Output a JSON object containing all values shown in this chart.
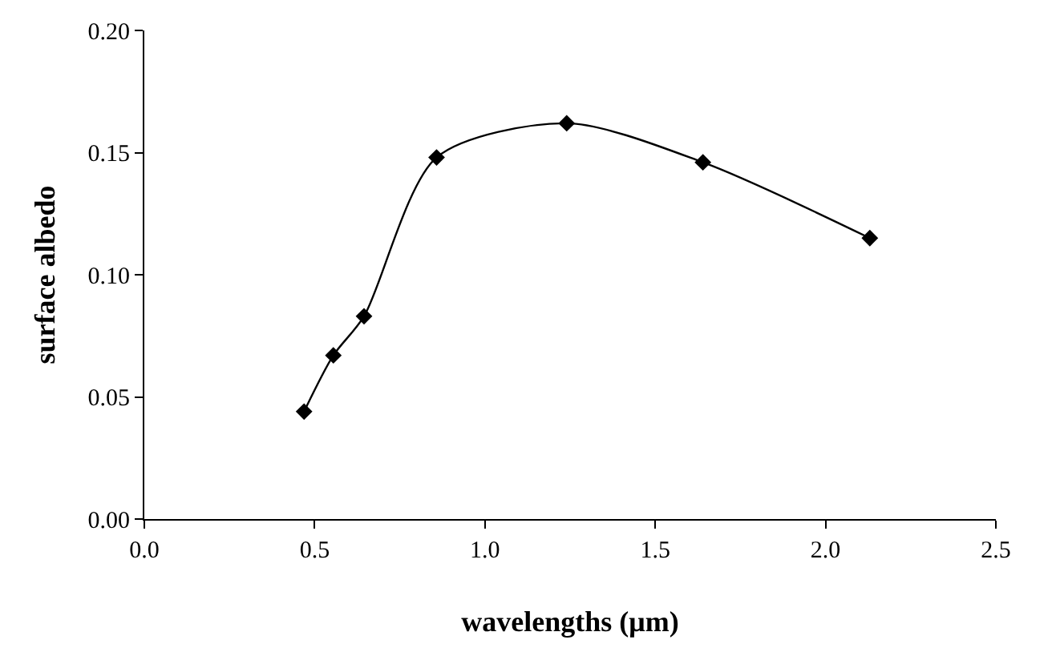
{
  "chart_data": {
    "type": "line",
    "xlabel": "wavelengths (μm)",
    "ylabel": "surface albedo",
    "x": [
      0.469,
      0.555,
      0.645,
      0.858,
      1.24,
      1.64,
      2.13
    ],
    "series": [
      {
        "color": "#000000",
        "values": [
          0.044,
          0.067,
          0.083,
          0.148,
          0.162,
          0.146,
          0.115
        ]
      }
    ],
    "xlim": [
      0.0,
      2.5
    ],
    "xticks": [
      {
        "value": 0,
        "label": "0.0"
      },
      {
        "value": 0.5,
        "label": "0.5"
      },
      {
        "value": 1,
        "label": "1.0"
      },
      {
        "value": 1.5,
        "label": "1.5"
      },
      {
        "value": 2,
        "label": "2.0"
      },
      {
        "value": 2.5,
        "label": "2.5"
      }
    ],
    "ylim": [
      0.0,
      0.2
    ],
    "yticks": [
      {
        "value": 0,
        "label": "0.00"
      },
      {
        "value": 0.05,
        "label": "0.05"
      },
      {
        "value": 0.1,
        "label": "0.10"
      },
      {
        "value": 0.15,
        "label": "0.15"
      },
      {
        "value": 0.2,
        "label": "0.20"
      }
    ],
    "grid": false,
    "legend": false,
    "marker": "diamond",
    "line_style": "solid"
  }
}
